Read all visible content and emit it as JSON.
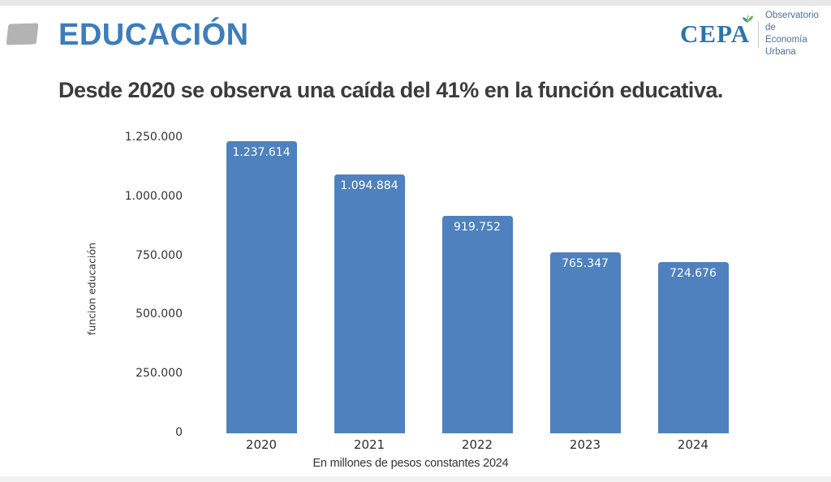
{
  "header": {
    "section_label": "EDUCACIÓN",
    "logo": {
      "brand": "CEPA",
      "unit_line1": "Observatorio de",
      "unit_line2": "Economía Urbana"
    }
  },
  "headline": "Desde 2020 se observa una caída del 41% en la función educativa.",
  "chart_data": {
    "type": "bar",
    "title": "",
    "categories": [
      "2020",
      "2021",
      "2022",
      "2023",
      "2024"
    ],
    "values": [
      1237614,
      1094884,
      919752,
      765347,
      724676
    ],
    "bar_labels": [
      "1.237.614",
      "1.094.884",
      "919.752",
      "765.347",
      "724.676"
    ],
    "xlabel": "En millones de pesos constantes 2024",
    "ylabel": "funcion educación",
    "ylim": [
      0,
      1250000
    ],
    "yticks": [
      {
        "value": 1250000,
        "label": "1.250.000"
      },
      {
        "value": 1000000,
        "label": "1.000.000"
      },
      {
        "value": 750000,
        "label": "750.000"
      },
      {
        "value": 500000,
        "label": "500.000"
      },
      {
        "value": 250000,
        "label": "250.000"
      },
      {
        "value": 0,
        "label": "0"
      }
    ],
    "grid": false,
    "legend": false,
    "bar_color": "#4e81bd",
    "bar_label_color": "#ffffff"
  },
  "colors": {
    "section_title_blue": "#3c7dbc",
    "brand_blue": "#2d73ad",
    "headline_dark": "#3b3b3b",
    "bar_blue": "#4e81bd",
    "sprout_green": "#5cb54a",
    "sprout_teal": "#2f9e77"
  }
}
